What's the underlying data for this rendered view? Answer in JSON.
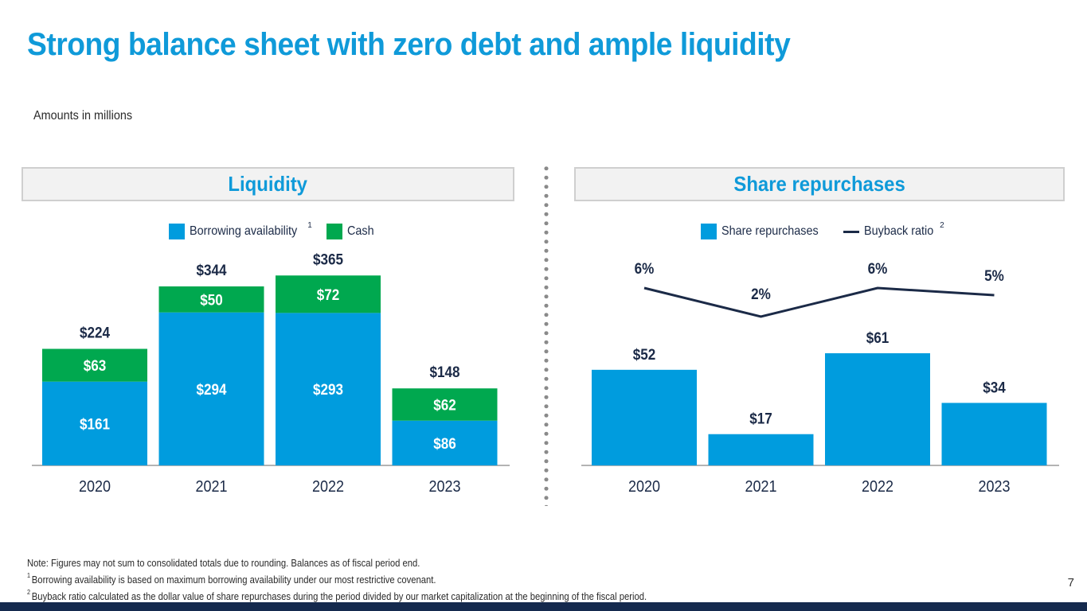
{
  "title": "Strong balance sheet with zero debt and ample liquidity",
  "subtitle": "Amounts in millions",
  "panels": {
    "liquidity": {
      "header": "Liquidity",
      "legend": [
        {
          "label": "Borrowing availability",
          "sup": "1",
          "color": "#009cde"
        },
        {
          "label": "Cash",
          "sup": "",
          "color": "#00a84f"
        }
      ]
    },
    "repurchases": {
      "header": "Share repurchases",
      "legend": [
        {
          "label": "Share repurchases",
          "sup": "",
          "color": "#009cde",
          "kind": "box"
        },
        {
          "label": "Buyback ratio",
          "sup": "2",
          "color": "#1b2a47",
          "kind": "line"
        }
      ]
    }
  },
  "chart_data": [
    {
      "type": "bar",
      "stacked": true,
      "title": "Liquidity",
      "categories": [
        "2020",
        "2021",
        "2022",
        "2023"
      ],
      "series": [
        {
          "name": "Borrowing availability",
          "values": [
            161,
            294,
            293,
            86
          ],
          "labels": [
            "$161",
            "$294",
            "$293",
            "$86"
          ],
          "color": "#009cde"
        },
        {
          "name": "Cash",
          "values": [
            63,
            50,
            72,
            62
          ],
          "labels": [
            "$63",
            "$50",
            "$72",
            "$62"
          ],
          "color": "#00a84f"
        }
      ],
      "totals": [
        224,
        344,
        365,
        148
      ],
      "total_labels": [
        "$224",
        "$344",
        "$365",
        "$148"
      ],
      "xlabel": "",
      "ylabel": "",
      "ylim": [
        0,
        370
      ],
      "grid": false,
      "legend": "top-center"
    },
    {
      "type": "bar",
      "title": "Share repurchases",
      "categories": [
        "2020",
        "2021",
        "2022",
        "2023"
      ],
      "series": [
        {
          "name": "Share repurchases",
          "type": "bar",
          "values": [
            52,
            17,
            61,
            34
          ],
          "labels": [
            "$52",
            "$17",
            "$61",
            "$34"
          ],
          "color": "#009cde"
        },
        {
          "name": "Buyback ratio",
          "type": "line",
          "values": [
            6,
            2,
            6,
            5
          ],
          "labels": [
            "6%",
            "2%",
            "6%",
            "5%"
          ],
          "unit": "%",
          "color": "#1b2a47"
        }
      ],
      "xlabel": "",
      "ylabel": "",
      "ylim": [
        0,
        90
      ],
      "grid": false,
      "legend": "top-center"
    }
  ],
  "footnotes": {
    "note": "Note: Figures may not sum to consolidated totals due to rounding. Balances as of fiscal period end.",
    "fn1_mark": "1",
    "fn1": "Borrowing availability is based on maximum borrowing availability under our most restrictive covenant.",
    "fn2_mark": "2",
    "fn2": "Buyback ratio calculated as the dollar value of share repurchases during the period divided by our market capitalization at the beginning of the fiscal period."
  },
  "page_number": "7"
}
